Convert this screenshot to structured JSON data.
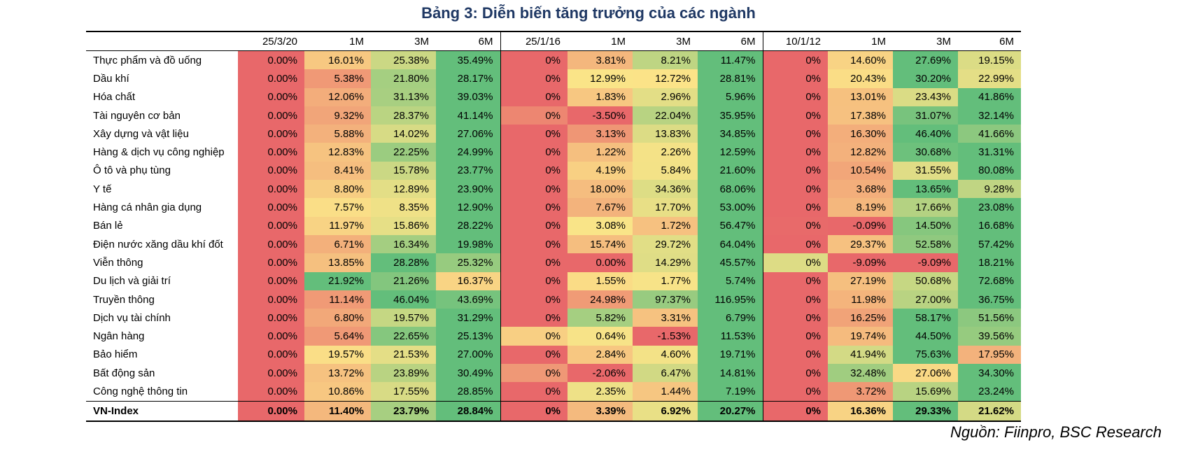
{
  "title": "Bảng 3: Diễn biến tăng trưởng của các ngành",
  "source": "Nguồn: Fiinpro, BSC Research",
  "colors": {
    "red": "#e8686a",
    "orange": "#f0a07c",
    "yellow": "#fbe488",
    "green": "#63be7b"
  },
  "headers": [
    "",
    "25/3/20",
    "1M",
    "3M",
    "6M",
    "25/1/16",
    "1M",
    "3M",
    "6M",
    "10/1/12",
    "1M",
    "3M",
    "6M"
  ],
  "rows": [
    {
      "name": "Thực phẩm và đồ uống",
      "values": [
        "0.00%",
        "16.01%",
        "25.38%",
        "35.49%",
        "0%",
        "3.81%",
        "8.21%",
        "11.47%",
        "0%",
        "14.60%",
        "27.69%",
        "19.15%"
      ]
    },
    {
      "name": "Dầu khí",
      "values": [
        "0.00%",
        "5.38%",
        "21.80%",
        "28.17%",
        "0%",
        "12.99%",
        "12.72%",
        "28.81%",
        "0%",
        "20.43%",
        "30.20%",
        "22.99%"
      ]
    },
    {
      "name": "Hóa chất",
      "values": [
        "0.00%",
        "12.06%",
        "31.13%",
        "39.03%",
        "0%",
        "1.83%",
        "2.96%",
        "5.96%",
        "0%",
        "13.01%",
        "23.43%",
        "41.86%"
      ]
    },
    {
      "name": "Tài nguyên cơ bản",
      "values": [
        "0.00%",
        "9.32%",
        "28.37%",
        "41.14%",
        "0%",
        "-3.50%",
        "22.04%",
        "35.95%",
        "0%",
        "17.38%",
        "31.07%",
        "32.14%"
      ]
    },
    {
      "name": "Xây dựng và vật liệu",
      "values": [
        "0.00%",
        "5.88%",
        "14.02%",
        "27.06%",
        "0%",
        "3.13%",
        "13.83%",
        "34.85%",
        "0%",
        "16.30%",
        "46.40%",
        "41.66%"
      ]
    },
    {
      "name": "Hàng & dịch vụ công nghiệp",
      "values": [
        "0.00%",
        "12.83%",
        "22.25%",
        "24.99%",
        "0%",
        "1.22%",
        "2.26%",
        "12.59%",
        "0%",
        "12.82%",
        "30.68%",
        "31.31%"
      ]
    },
    {
      "name": "Ô tô và phụ tùng",
      "values": [
        "0.00%",
        "8.41%",
        "15.78%",
        "23.77%",
        "0%",
        "4.19%",
        "5.84%",
        "21.60%",
        "0%",
        "10.54%",
        "31.55%",
        "80.08%"
      ]
    },
    {
      "name": "Y tế",
      "values": [
        "0.00%",
        "8.80%",
        "12.89%",
        "23.90%",
        "0%",
        "18.00%",
        "34.36%",
        "68.06%",
        "0%",
        "3.68%",
        "13.65%",
        "9.28%"
      ]
    },
    {
      "name": "Hàng cá nhân gia dụng",
      "values": [
        "0.00%",
        "7.57%",
        "8.35%",
        "12.90%",
        "0%",
        "7.67%",
        "17.70%",
        "53.00%",
        "0%",
        "8.19%",
        "17.66%",
        "23.08%"
      ]
    },
    {
      "name": "Bán lẻ",
      "values": [
        "0.00%",
        "11.97%",
        "15.86%",
        "28.22%",
        "0%",
        "3.08%",
        "1.72%",
        "56.47%",
        "0%",
        "-0.09%",
        "14.50%",
        "16.68%"
      ]
    },
    {
      "name": "Điện nước xăng dầu khí đốt",
      "values": [
        "0.00%",
        "6.71%",
        "16.34%",
        "19.98%",
        "0%",
        "15.74%",
        "29.72%",
        "64.04%",
        "0%",
        "29.37%",
        "52.58%",
        "57.42%"
      ]
    },
    {
      "name": "Viễn thông",
      "values": [
        "0.00%",
        "13.85%",
        "28.28%",
        "25.32%",
        "0%",
        "0.00%",
        "14.29%",
        "45.57%",
        "0%",
        "-9.09%",
        "-9.09%",
        "18.21%"
      ]
    },
    {
      "name": "Du lịch và giải trí",
      "values": [
        "0.00%",
        "21.92%",
        "21.26%",
        "16.37%",
        "0%",
        "1.55%",
        "1.77%",
        "5.74%",
        "0%",
        "27.19%",
        "50.68%",
        "72.68%"
      ]
    },
    {
      "name": "Truyền thông",
      "values": [
        "0.00%",
        "11.14%",
        "46.04%",
        "43.69%",
        "0%",
        "24.98%",
        "97.37%",
        "116.95%",
        "0%",
        "11.98%",
        "27.00%",
        "36.75%"
      ]
    },
    {
      "name": "Dịch vụ tài chính",
      "values": [
        "0.00%",
        "6.80%",
        "19.57%",
        "31.29%",
        "0%",
        "5.82%",
        "3.31%",
        "6.79%",
        "0%",
        "16.25%",
        "58.17%",
        "51.56%"
      ]
    },
    {
      "name": "Ngân hàng",
      "values": [
        "0.00%",
        "5.64%",
        "22.65%",
        "25.13%",
        "0%",
        "0.64%",
        "-1.53%",
        "11.53%",
        "0%",
        "19.74%",
        "44.50%",
        "39.56%"
      ]
    },
    {
      "name": "Bảo hiểm",
      "values": [
        "0.00%",
        "19.57%",
        "21.53%",
        "27.00%",
        "0%",
        "2.84%",
        "4.60%",
        "19.71%",
        "0%",
        "41.94%",
        "75.63%",
        "17.95%"
      ]
    },
    {
      "name": "Bất động sản",
      "values": [
        "0.00%",
        "13.72%",
        "23.89%",
        "30.49%",
        "0%",
        "-2.06%",
        "6.47%",
        "14.81%",
        "0%",
        "32.48%",
        "27.06%",
        "34.30%"
      ]
    },
    {
      "name": "Công nghệ thông tin",
      "values": [
        "0.00%",
        "10.86%",
        "17.55%",
        "28.85%",
        "0%",
        "2.35%",
        "1.44%",
        "7.19%",
        "0%",
        "3.72%",
        "15.69%",
        "23.24%"
      ]
    }
  ],
  "total": {
    "name": "VN-Index",
    "values": [
      "0.00%",
      "11.40%",
      "23.79%",
      "28.84%",
      "0%",
      "3.39%",
      "6.92%",
      "20.27%",
      "0%",
      "16.36%",
      "29.33%",
      "21.62%"
    ]
  }
}
